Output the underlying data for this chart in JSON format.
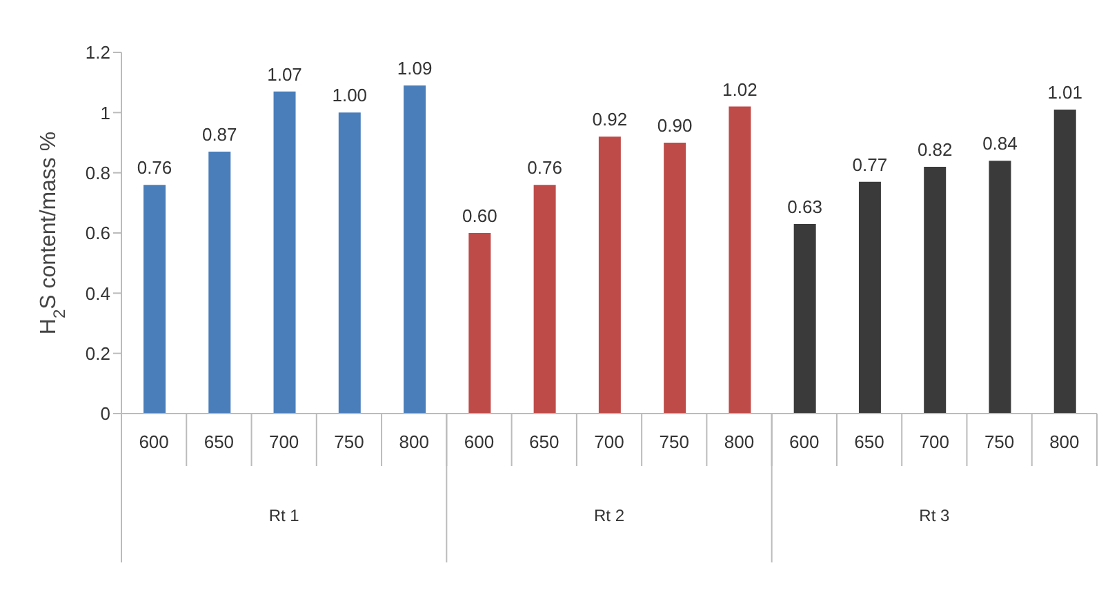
{
  "chart_data": {
    "type": "bar",
    "ylabel": "H$_{2}$S content/mass %",
    "categories": [
      "600",
      "650",
      "700",
      "750",
      "800",
      "600",
      "650",
      "700",
      "750",
      "800",
      "600",
      "650",
      "700",
      "750",
      "800"
    ],
    "series": [
      {
        "color": "#4a7ebb",
        "values": [
          0.76,
          0.87,
          1.07,
          1.0,
          1.09,
          null,
          null,
          null,
          null,
          null,
          null,
          null,
          null,
          null,
          null
        ],
        "value_labels": [
          "0.76",
          "0.87",
          "1.07",
          "1.00",
          "1.09",
          null,
          null,
          null,
          null,
          null,
          null,
          null,
          null,
          null,
          null
        ]
      },
      {
        "color": "#be4b48",
        "values": [
          null,
          null,
          null,
          null,
          null,
          0.6,
          0.76,
          0.92,
          0.9,
          1.02,
          null,
          null,
          null,
          null,
          null
        ],
        "value_labels": [
          null,
          null,
          null,
          null,
          null,
          "0.60",
          "0.76",
          "0.92",
          "0.90",
          "1.02",
          null,
          null,
          null,
          null,
          null
        ]
      },
      {
        "color": "#3a3a3a",
        "values": [
          null,
          null,
          null,
          null,
          null,
          null,
          null,
          null,
          null,
          null,
          0.63,
          0.77,
          0.82,
          0.84,
          1.01
        ],
        "value_labels": [
          null,
          null,
          null,
          null,
          null,
          null,
          null,
          null,
          null,
          null,
          "0.63",
          "0.77",
          "0.82",
          "0.84",
          "1.01"
        ]
      }
    ],
    "annotations": [
      "Rt 1",
      "Rt 2",
      "Rt 3"
    ],
    "ylim": [
      0,
      1.2
    ],
    "yticks": [
      0,
      0.2,
      0.4,
      0.6,
      0.8,
      1,
      1.2
    ],
    "grid": false
  }
}
